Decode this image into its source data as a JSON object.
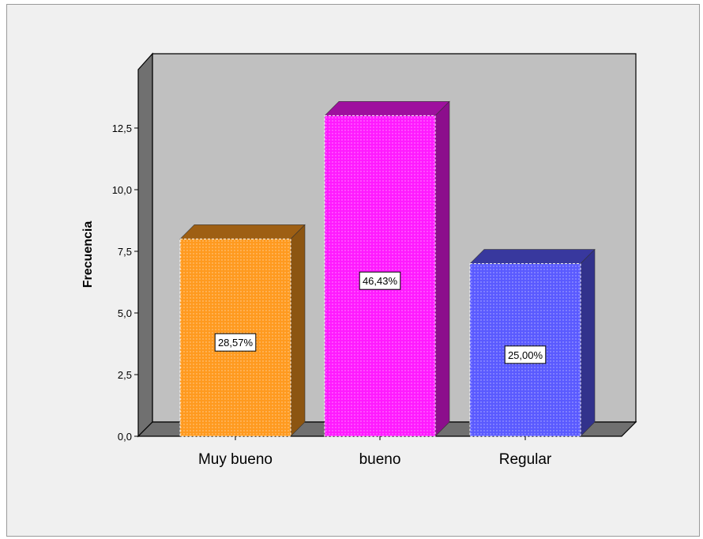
{
  "chart_data": {
    "type": "bar",
    "categories": [
      "Muy bueno",
      "bueno",
      "Regular"
    ],
    "values": [
      8,
      13,
      7
    ],
    "data_labels": [
      "28,57%",
      "46,43%",
      "25,00%"
    ],
    "colors": [
      "#ff9a1f",
      "#ff1aff",
      "#5a5aff"
    ],
    "title": "",
    "xlabel": "",
    "ylabel": "Frecuencia",
    "ylim": [
      0,
      15
    ],
    "yticks": [
      0,
      2.5,
      5,
      7.5,
      10,
      12.5
    ],
    "ytick_labels": [
      "0,0",
      "2,5",
      "5,0",
      "7,5",
      "10,0",
      "12,5"
    ],
    "grid": false,
    "legend": "none",
    "style": "3d"
  }
}
